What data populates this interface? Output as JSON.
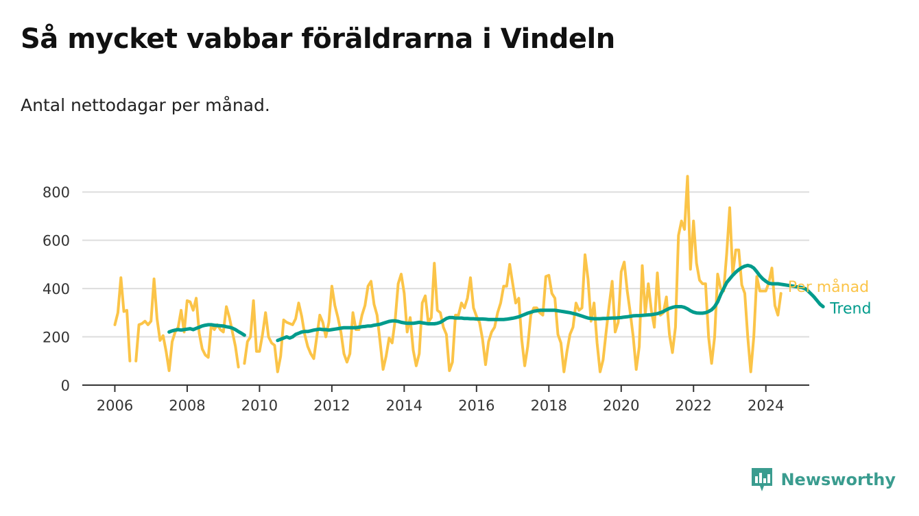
{
  "title": "Så mycket vabbar föräldrarna i Vindeln",
  "subtitle": "Antal nettodagar per månad.",
  "brand": "Newsworthy",
  "colors": {
    "monthly": "#FBC448",
    "trend": "#009B8C",
    "grid": "#DDDDDD",
    "axis": "#333333",
    "brand": "#3A9C8F"
  },
  "chart_data": {
    "type": "line",
    "x_unit": "year",
    "xlim": [
      2005.1,
      2025.2
    ],
    "ylim": [
      0,
      900
    ],
    "yticks": [
      0,
      200,
      400,
      600,
      800
    ],
    "xticks": [
      2006,
      2008,
      2010,
      2012,
      2014,
      2016,
      2018,
      2020,
      2022,
      2024
    ],
    "grid": true,
    "series": [
      {
        "name": "Per månad",
        "x_start": 2006.0,
        "step": 0.0833333,
        "values": [
          250,
          300,
          445,
          305,
          310,
          100,
          null,
          100,
          250,
          255,
          265,
          250,
          265,
          440,
          275,
          185,
          205,
          140,
          60,
          180,
          220,
          240,
          310,
          220,
          350,
          345,
          310,
          360,
          215,
          150,
          125,
          115,
          250,
          230,
          250,
          230,
          220,
          325,
          280,
          220,
          160,
          75,
          null,
          90,
          180,
          200,
          350,
          140,
          140,
          210,
          300,
          200,
          175,
          165,
          55,
          120,
          270,
          260,
          255,
          250,
          275,
          340,
          285,
          210,
          160,
          130,
          110,
          200,
          290,
          260,
          200,
          260,
          410,
          330,
          280,
          220,
          130,
          95,
          130,
          300,
          230,
          230,
          290,
          330,
          410,
          430,
          335,
          290,
          180,
          65,
          120,
          195,
          175,
          270,
          420,
          460,
          380,
          220,
          280,
          145,
          80,
          130,
          340,
          370,
          260,
          280,
          505,
          310,
          300,
          240,
          210,
          60,
          95,
          290,
          290,
          340,
          320,
          360,
          445,
          320,
          285,
          260,
          190,
          85,
          180,
          220,
          240,
          300,
          340,
          410,
          410,
          500,
          420,
          340,
          360,
          190,
          80,
          160,
          290,
          320,
          320,
          300,
          290,
          450,
          455,
          380,
          360,
          210,
          175,
          55,
          140,
          210,
          240,
          340,
          310,
          320,
          540,
          440,
          265,
          340,
          175,
          55,
          105,
          220,
          330,
          430,
          220,
          260,
          470,
          510,
          390,
          300,
          200,
          65,
          160,
          495,
          295,
          420,
          310,
          240,
          465,
          290,
          300,
          365,
          210,
          135,
          240,
          620,
          680,
          645,
          865,
          480,
          680,
          505,
          435,
          420,
          420,
          200,
          90,
          200,
          460,
          400,
          390,
          545,
          735,
          460,
          560,
          560,
          415,
          380,
          200,
          55,
          200,
          450,
          390,
          390,
          390,
          425,
          485,
          330,
          290,
          380
        ]
      },
      {
        "name": "Trend",
        "x_start": 2007.5,
        "step": 0.0833333,
        "values": [
          220,
          225,
          228,
          230,
          228,
          230,
          232,
          234,
          230,
          235,
          240,
          245,
          248,
          250,
          250,
          248,
          247,
          246,
          245,
          242,
          240,
          236,
          230,
          222,
          215,
          207,
          null,
          null,
          null,
          null,
          null,
          null,
          null,
          null,
          null,
          null,
          185,
          190,
          195,
          200,
          195,
          200,
          210,
          215,
          220,
          222,
          222,
          225,
          228,
          230,
          232,
          230,
          230,
          228,
          230,
          232,
          234,
          236,
          238,
          238,
          238,
          238,
          238,
          240,
          242,
          243,
          245,
          245,
          248,
          250,
          252,
          256,
          260,
          264,
          266,
          266,
          264,
          260,
          258,
          256,
          256,
          256,
          258,
          260,
          258,
          256,
          254,
          254,
          254,
          256,
          260,
          268,
          276,
          280,
          280,
          278,
          278,
          278,
          276,
          276,
          275,
          275,
          274,
          274,
          274,
          273,
          272,
          272,
          272,
          272,
          272,
          272,
          273,
          275,
          277,
          280,
          283,
          288,
          293,
          298,
          302,
          306,
          308,
          310,
          310,
          310,
          310,
          310,
          310,
          308,
          306,
          304,
          302,
          300,
          297,
          294,
          290,
          286,
          282,
          278,
          276,
          275,
          275,
          275,
          276,
          276,
          277,
          278,
          278,
          279,
          280,
          282,
          283,
          285,
          287,
          288,
          288,
          289,
          290,
          291,
          292,
          294,
          296,
          300,
          305,
          312,
          318,
          322,
          325,
          325,
          325,
          322,
          316,
          308,
          302,
          299,
          298,
          298,
          300,
          305,
          312,
          325,
          345,
          375,
          400,
          425,
          440,
          455,
          468,
          478,
          487,
          493,
          496,
          493,
          485,
          470,
          453,
          440,
          430,
          422,
          420,
          420,
          420,
          418,
          416,
          414,
          412,
          410,
          408,
          406,
          404,
          400,
          390,
          378,
          365,
          350,
          335,
          325
        ]
      }
    ]
  }
}
